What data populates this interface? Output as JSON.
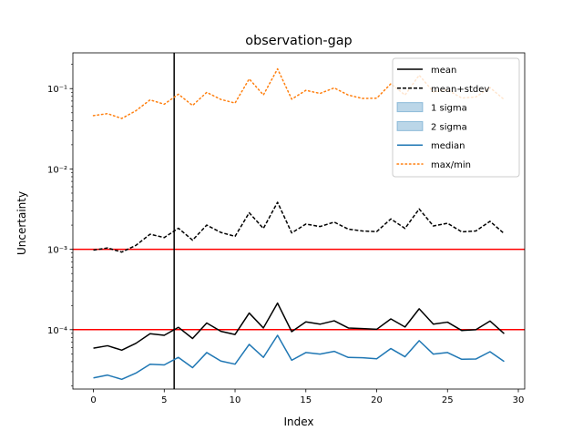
{
  "chart_data": {
    "type": "line",
    "title": "observation-gap",
    "xlabel": "Index",
    "ylabel": "Uncertainty",
    "xlim": [
      -1.45,
      30.45
    ],
    "ylim": [
      1.823e-05,
      0.2786
    ],
    "yscale": "log",
    "x_ticks": [
      0,
      5,
      10,
      15,
      20,
      25,
      30
    ],
    "x_tick_labels": [
      "0",
      "5",
      "10",
      "15",
      "20",
      "25",
      "30"
    ],
    "y_ticks": [
      0.0001,
      0.001,
      0.01,
      0.1
    ],
    "y_tick_labels": [
      "10⁻⁴",
      "10⁻³",
      "10⁻²",
      "10⁻¹"
    ],
    "x": [
      0,
      1,
      2,
      3,
      4,
      5,
      6,
      7,
      8,
      9,
      10,
      11,
      12,
      13,
      14,
      15,
      16,
      17,
      18,
      19,
      20,
      21,
      22,
      23,
      24,
      25,
      26,
      27,
      28,
      29
    ],
    "series": [
      {
        "name": "mean",
        "color": "#000000",
        "dash": "solid",
        "values": [
          5.89e-05,
          6.31e-05,
          5.56e-05,
          6.76e-05,
          8.91e-05,
          8.51e-05,
          0.000107,
          7.76e-05,
          0.000121,
          9.53e-05,
          8.71e-05,
          0.000161,
          0.000105,
          0.000214,
          9.45e-05,
          0.000125,
          0.000117,
          0.000129,
          0.000105,
          0.000103,
          0.000101,
          0.000136,
          0.000108,
          0.000182,
          0.000117,
          0.000124,
          9.77e-05,
          9.97e-05,
          0.000128,
          8.91e-05
        ]
      },
      {
        "name": "mean+stdev",
        "color": "#000000",
        "dash": "dashed",
        "values": [
          0.000977,
          0.00104,
          0.000923,
          0.00112,
          0.00154,
          0.0014,
          0.00183,
          0.0013,
          0.002,
          0.00162,
          0.00145,
          0.00285,
          0.00182,
          0.00385,
          0.0016,
          0.00206,
          0.00192,
          0.00218,
          0.00178,
          0.00169,
          0.00166,
          0.00239,
          0.00182,
          0.00318,
          0.00195,
          0.00211,
          0.00165,
          0.00169,
          0.00223,
          0.00157
        ]
      },
      {
        "name": "median",
        "color": "#1f77b4",
        "dash": "solid",
        "values": [
          2.51e-05,
          2.72e-05,
          2.41e-05,
          2.88e-05,
          3.71e-05,
          3.64e-05,
          4.52e-05,
          3.37e-05,
          5.19e-05,
          4.07e-05,
          3.72e-05,
          6.56e-05,
          4.52e-05,
          8.51e-05,
          4.16e-05,
          5.19e-05,
          4.96e-05,
          5.37e-05,
          4.51e-05,
          4.47e-05,
          4.34e-05,
          5.82e-05,
          4.6e-05,
          7.3e-05,
          4.96e-05,
          5.19e-05,
          4.28e-05,
          4.31e-05,
          5.32e-05,
          4.02e-05
        ]
      },
      {
        "name": "max/min",
        "color": "#ff7f0e",
        "dash": "dotted",
        "values": [
          0.0461,
          0.0488,
          0.0425,
          0.053,
          0.0724,
          0.0639,
          0.0852,
          0.0617,
          0.0898,
          0.0733,
          0.0661,
          0.132,
          0.0833,
          0.176,
          0.0739,
          0.0951,
          0.0871,
          0.102,
          0.083,
          0.0754,
          0.0759,
          0.115,
          0.0832,
          0.147,
          0.0912,
          0.0965,
          0.0763,
          0.0786,
          0.103,
          0.073
        ]
      }
    ],
    "bands": [
      {
        "name": "1 sigma",
        "color": "#1f77b4",
        "opacity": 0.3
      },
      {
        "name": "2 sigma",
        "color": "#1f77b4",
        "opacity": 0.3
      }
    ],
    "hlines": [
      0.0001,
      0.001
    ],
    "hline_color": "#ff0000",
    "vline": 5.7,
    "vline_color": "#000000",
    "grid": false,
    "legend": {
      "position": "top-right",
      "entries": [
        {
          "label": "mean",
          "kind": "line",
          "color": "#000000",
          "dash": "solid"
        },
        {
          "label": "mean+stdev",
          "kind": "line",
          "color": "#000000",
          "dash": "dashed"
        },
        {
          "label": "1 sigma",
          "kind": "patch",
          "color": "#1f77b4",
          "opacity": 0.3
        },
        {
          "label": "2 sigma",
          "kind": "patch",
          "color": "#1f77b4",
          "opacity": 0.3
        },
        {
          "label": "median",
          "kind": "line",
          "color": "#1f77b4",
          "dash": "solid"
        },
        {
          "label": "max/min",
          "kind": "line",
          "color": "#ff7f0e",
          "dash": "dotted"
        }
      ]
    }
  }
}
